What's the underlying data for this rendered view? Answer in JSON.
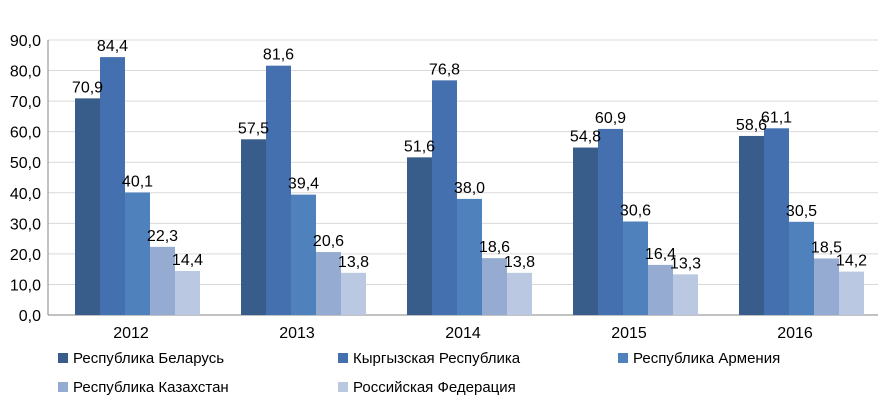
{
  "chart_data": {
    "type": "bar",
    "title": "",
    "xlabel": "",
    "ylabel": "",
    "ylim": [
      0,
      90
    ],
    "yticks": [
      "0,0",
      "10,0",
      "20,0",
      "30,0",
      "40,0",
      "50,0",
      "60,0",
      "70,0",
      "80,0",
      "90,0"
    ],
    "grid": true,
    "legend_position": "bottom",
    "categories": [
      "2012",
      "2013",
      "2014",
      "2015",
      "2016"
    ],
    "series": [
      {
        "name": "Республика Беларусь",
        "color": "#385d8a",
        "values": [
          70.9,
          57.5,
          51.6,
          54.8,
          58.6
        ],
        "labels": [
          "70,9",
          "57,5",
          "51,6",
          "54,8",
          "58,6"
        ]
      },
      {
        "name": "Кыргызская Республика",
        "color": "#4470b0",
        "values": [
          84.4,
          81.6,
          76.8,
          60.9,
          61.1
        ],
        "labels": [
          "84,4",
          "81,6",
          "76,8",
          "60,9",
          "61,1"
        ]
      },
      {
        "name": "Республика Армения",
        "color": "#4f81bd",
        "values": [
          40.1,
          39.4,
          38.0,
          30.6,
          30.5
        ],
        "labels": [
          "40,1",
          "39,4",
          "38,0",
          "30,6",
          "30,5"
        ]
      },
      {
        "name": "Республика Казахстан",
        "color": "#95abd1",
        "values": [
          22.3,
          20.6,
          18.6,
          16.4,
          18.5
        ],
        "labels": [
          "22,3",
          "20,6",
          "18,6",
          "16,4",
          "18,5"
        ]
      },
      {
        "name": "Российская Федерация",
        "color": "#bac8e2",
        "values": [
          14.4,
          13.8,
          13.8,
          13.3,
          14.2
        ],
        "labels": [
          "14,4",
          "13,8",
          "13,8",
          "13,3",
          "14,2"
        ]
      }
    ]
  }
}
